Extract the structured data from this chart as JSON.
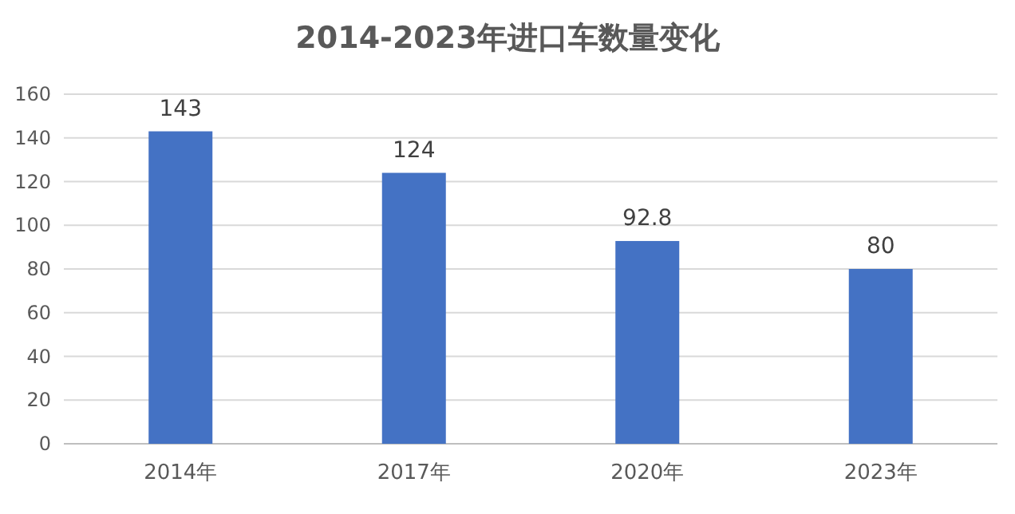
{
  "chart_data": {
    "type": "bar",
    "title": "2014-2023年进口车数量变化",
    "categories": [
      "2014年",
      "2017年",
      "2020年",
      "2023年"
    ],
    "values": [
      143,
      124,
      92.8,
      80
    ],
    "color": "#4472c4",
    "ylim": [
      0,
      160
    ],
    "yticks": [
      0,
      20,
      40,
      60,
      80,
      100,
      120,
      140,
      160
    ],
    "grid": "y",
    "data_labels": true
  }
}
